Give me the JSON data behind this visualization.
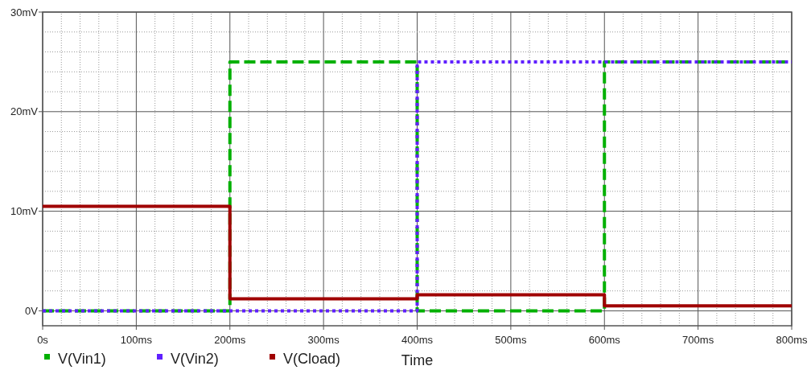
{
  "chart_data": {
    "type": "step",
    "xlabel": "Time",
    "x": [
      0,
      200,
      400,
      600,
      800
    ],
    "series": [
      {
        "name": "V(Vin1)",
        "color": "#00b000",
        "line_style": "dashed",
        "values": [
          0,
          25,
          0,
          25,
          25
        ]
      },
      {
        "name": "V(Vin2)",
        "color": "#6020ff",
        "line_style": "dotted",
        "values": [
          0,
          0,
          25,
          25,
          25
        ]
      },
      {
        "name": "V(Cload)",
        "color": "#a00000",
        "line_style": "solid",
        "values": [
          10.5,
          1.2,
          1.6,
          0.5,
          0.5
        ]
      }
    ],
    "xlim": [
      0,
      800
    ],
    "xticks": [
      {
        "value": 0,
        "label": "0s"
      },
      {
        "value": 20,
        "label": null
      },
      {
        "value": 40,
        "label": null
      },
      {
        "value": 60,
        "label": null
      },
      {
        "value": 80,
        "label": null
      },
      {
        "value": 100,
        "label": "100ms"
      },
      {
        "value": 120,
        "label": null
      },
      {
        "value": 140,
        "label": null
      },
      {
        "value": 160,
        "label": null
      },
      {
        "value": 180,
        "label": null
      },
      {
        "value": 200,
        "label": "200ms"
      },
      {
        "value": 220,
        "label": null
      },
      {
        "value": 240,
        "label": null
      },
      {
        "value": 260,
        "label": null
      },
      {
        "value": 280,
        "label": null
      },
      {
        "value": 300,
        "label": "300ms"
      },
      {
        "value": 320,
        "label": null
      },
      {
        "value": 340,
        "label": null
      },
      {
        "value": 360,
        "label": null
      },
      {
        "value": 380,
        "label": null
      },
      {
        "value": 400,
        "label": "400ms"
      },
      {
        "value": 420,
        "label": null
      },
      {
        "value": 440,
        "label": null
      },
      {
        "value": 460,
        "label": null
      },
      {
        "value": 480,
        "label": null
      },
      {
        "value": 500,
        "label": "500ms"
      },
      {
        "value": 520,
        "label": null
      },
      {
        "value": 540,
        "label": null
      },
      {
        "value": 560,
        "label": null
      },
      {
        "value": 580,
        "label": null
      },
      {
        "value": 600,
        "label": "600ms"
      },
      {
        "value": 620,
        "label": null
      },
      {
        "value": 640,
        "label": null
      },
      {
        "value": 660,
        "label": null
      },
      {
        "value": 680,
        "label": null
      },
      {
        "value": 700,
        "label": "700ms"
      },
      {
        "value": 720,
        "label": null
      },
      {
        "value": 740,
        "label": null
      },
      {
        "value": 760,
        "label": null
      },
      {
        "value": 780,
        "label": null
      },
      {
        "value": 800,
        "label": "800ms"
      }
    ],
    "ylim": [
      -1.5,
      30
    ],
    "yticks": [
      {
        "value": 0,
        "label": "0V"
      },
      {
        "value": 2,
        "label": null
      },
      {
        "value": 4,
        "label": null
      },
      {
        "value": 6,
        "label": null
      },
      {
        "value": 8,
        "label": null
      },
      {
        "value": 10,
        "label": "10mV"
      },
      {
        "value": 12,
        "label": null
      },
      {
        "value": 14,
        "label": null
      },
      {
        "value": 16,
        "label": null
      },
      {
        "value": 18,
        "label": null
      },
      {
        "value": 20,
        "label": "20mV"
      },
      {
        "value": 22,
        "label": null
      },
      {
        "value": 24,
        "label": null
      },
      {
        "value": 26,
        "label": null
      },
      {
        "value": 28,
        "label": null
      },
      {
        "value": 30,
        "label": "30mV"
      }
    ],
    "grid": true,
    "legend": "bottom left"
  }
}
